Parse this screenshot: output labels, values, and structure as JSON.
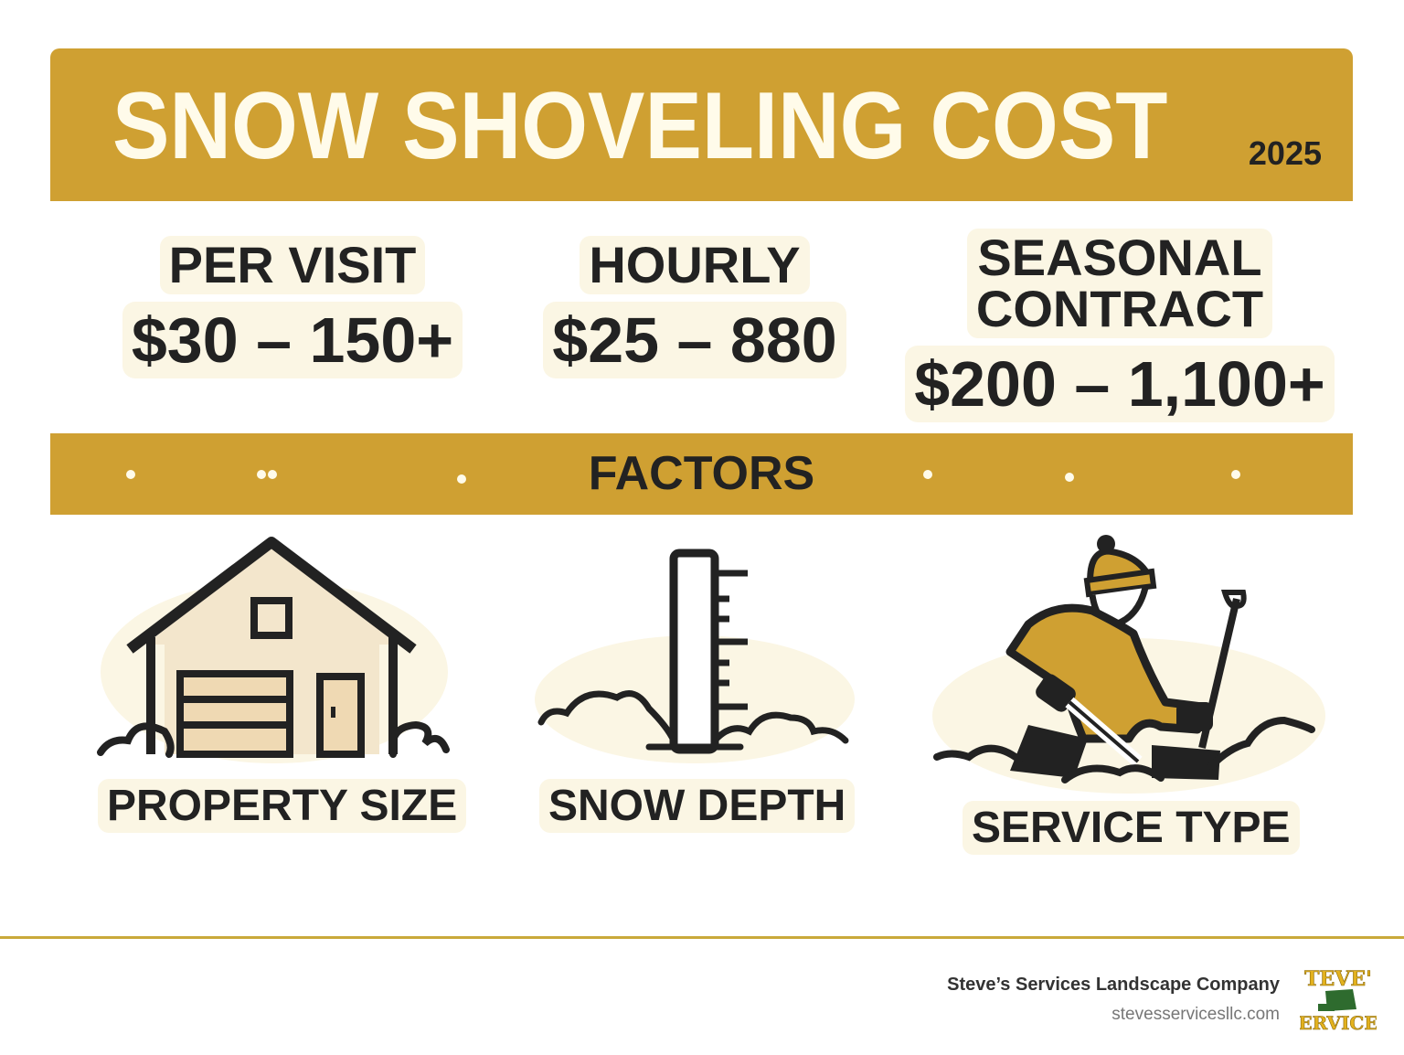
{
  "header": {
    "title": "SNOW SHOVELING COST",
    "year": "2025"
  },
  "pricing": [
    {
      "label": "PER VISIT",
      "value": "$30 – 150+"
    },
    {
      "label": "HOURLY",
      "value": "$25 – 880"
    },
    {
      "label_lines": [
        "SEASONAL",
        "CONTRACT"
      ],
      "value": "$200 – 1,100+"
    }
  ],
  "factors": {
    "title": "FACTORS",
    "items": [
      {
        "label": "PROPERTY SIZE",
        "icon": "house-icon"
      },
      {
        "label": "SNOW DEPTH",
        "icon": "snow-ruler-icon"
      },
      {
        "label": "SERVICE TYPE",
        "icon": "person-shoveling-icon"
      }
    ]
  },
  "footer": {
    "company": "Steve’s Services Landscape Company",
    "website": "stevesservicesllc.com",
    "logo_text": "STEVE'S SERVICE"
  },
  "colors": {
    "gold": "#CFA032",
    "cream": "#FFFBEA",
    "dark": "#222222"
  }
}
